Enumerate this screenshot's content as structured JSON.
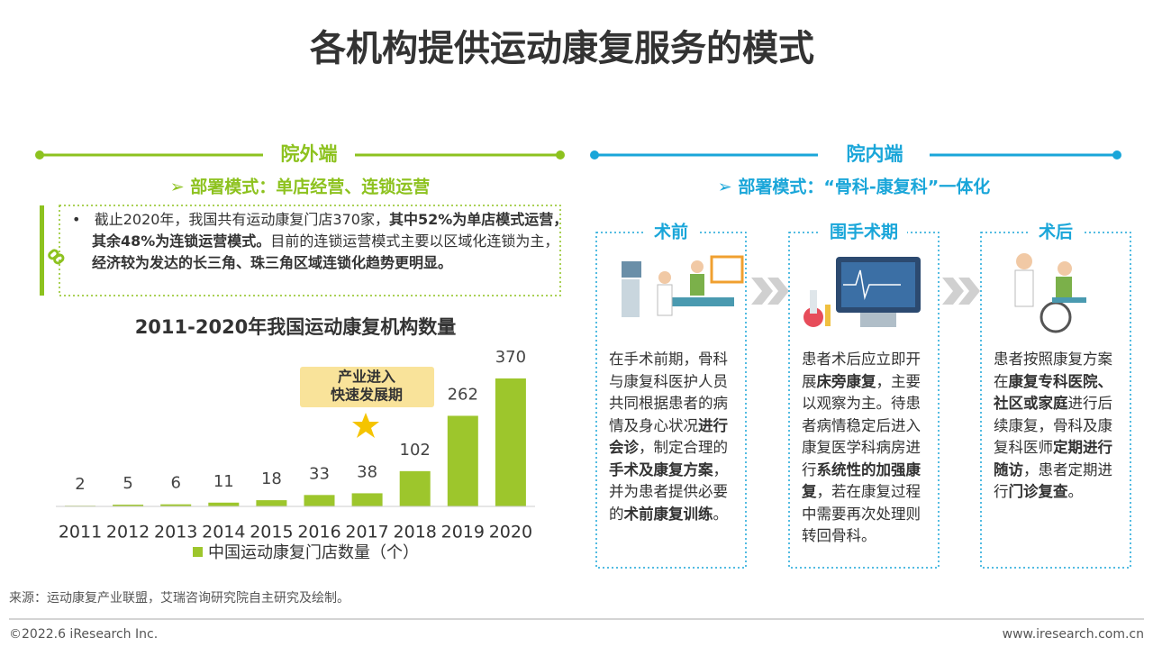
{
  "title": "各机构提供运动康复服务的模式",
  "left": {
    "heading": "院外端",
    "mode": "➢ 部署模式：单店经营、连锁运营",
    "bullet": [
      {
        "text": "截止2020年，我国共有运动康复门店370家，",
        "bold": false
      },
      {
        "text": "其中52%为单店模式运营，其余48%为连锁运营模式。",
        "bold": true
      },
      {
        "text": "目前的连锁运营模式主要以区域化连锁为主，",
        "bold": false
      },
      {
        "text": "经济较为发达的长三角、珠三角区域连锁化趋势更明显。",
        "bold": true
      }
    ]
  },
  "chart_data": {
    "type": "bar",
    "title": "2011-2020年我国运动康复机构数量",
    "categories": [
      "2011",
      "2012",
      "2013",
      "2014",
      "2015",
      "2016",
      "2017",
      "2018",
      "2019",
      "2020"
    ],
    "series": [
      {
        "name": "中国运动康复门店数量（个）",
        "color": "#9dc62c",
        "values": [
          2,
          5,
          6,
          11,
          18,
          33,
          38,
          102,
          262,
          370
        ]
      }
    ],
    "annotation": [
      "产业进入",
      "快速发展期"
    ]
  },
  "right": {
    "heading": "院内端",
    "mode": "➢ 部署模式：“骨科-康复科”一体化",
    "stages": [
      {
        "title": "术前",
        "text": [
          {
            "text": "在手术前期，骨科与康复科医护人员共同根据患者的病情及身心状况",
            "bold": false
          },
          {
            "text": "进行会诊",
            "bold": true
          },
          {
            "text": "，制定合理的",
            "bold": false
          },
          {
            "text": "手术及康复方案",
            "bold": true
          },
          {
            "text": "，并为患者提供必要的",
            "bold": false
          },
          {
            "text": "术前康复训练",
            "bold": true
          },
          {
            "text": "。",
            "bold": false
          }
        ]
      },
      {
        "title": "围手术期",
        "text": [
          {
            "text": "患者术后应立即开展",
            "bold": false
          },
          {
            "text": "床旁康复",
            "bold": true
          },
          {
            "text": "，主要以观察为主。待患者病情稳定后进入康复医学科病房进行",
            "bold": false
          },
          {
            "text": "系统性的加强康复",
            "bold": true
          },
          {
            "text": "，若在康复过程中需要再次处理则转回骨科。",
            "bold": false
          }
        ]
      },
      {
        "title": "术后",
        "text": [
          {
            "text": "患者按照康复方案在",
            "bold": false
          },
          {
            "text": "康复专科医院、社区或家庭",
            "bold": true
          },
          {
            "text": "进行后续康复，骨科及康复科医师",
            "bold": false
          },
          {
            "text": "定期进行随访",
            "bold": true
          },
          {
            "text": "，患者定期进行",
            "bold": false
          },
          {
            "text": "门诊复查",
            "bold": true
          },
          {
            "text": "。",
            "bold": false
          }
        ]
      }
    ]
  },
  "source": "来源：运动康复产业联盟，艾瑞咨询研究院自主研究及绘制。",
  "footer": {
    "copyright": "©2022.6 iResearch Inc.",
    "url": "www.iresearch.com.cn"
  }
}
